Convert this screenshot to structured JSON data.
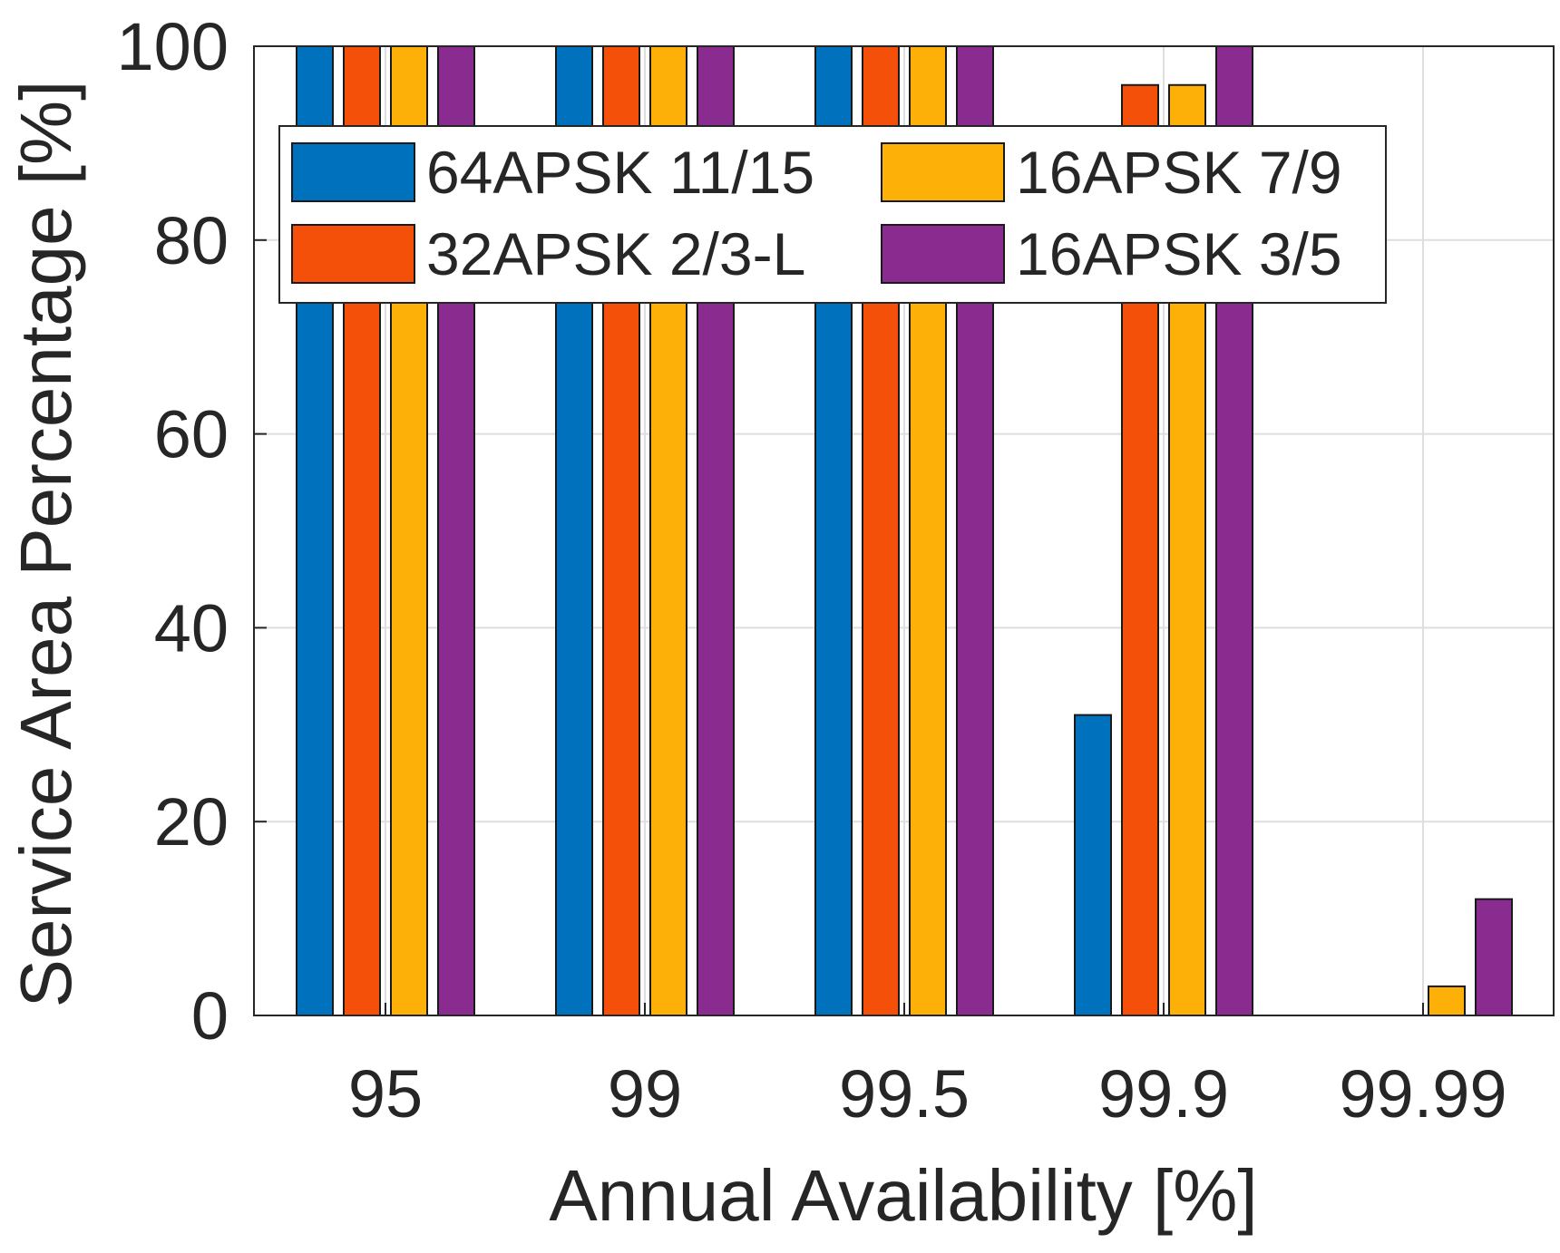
{
  "chart_data": {
    "type": "bar",
    "title": "",
    "xlabel": "Annual Availability [%]",
    "ylabel": "Service Area Percentage [%]",
    "categories": [
      "95",
      "99",
      "99.5",
      "99.9",
      "99.99"
    ],
    "ylim": [
      0,
      100
    ],
    "yticks": [
      0,
      20,
      40,
      60,
      80,
      100
    ],
    "grid": true,
    "legend_position": "top",
    "series": [
      {
        "name": "64APSK 11/15",
        "color": "#0072BD",
        "values": [
          100,
          100,
          100,
          31,
          0
        ]
      },
      {
        "name": "32APSK 2/3-L",
        "color": "#F5500A",
        "values": [
          100,
          100,
          100,
          96,
          0
        ]
      },
      {
        "name": "16APSK 7/9",
        "color": "#FDB108",
        "values": [
          100,
          100,
          100,
          96,
          3
        ]
      },
      {
        "name": "16APSK 3/5",
        "color": "#8A2B90",
        "values": [
          100,
          100,
          100,
          100,
          12
        ]
      }
    ]
  }
}
